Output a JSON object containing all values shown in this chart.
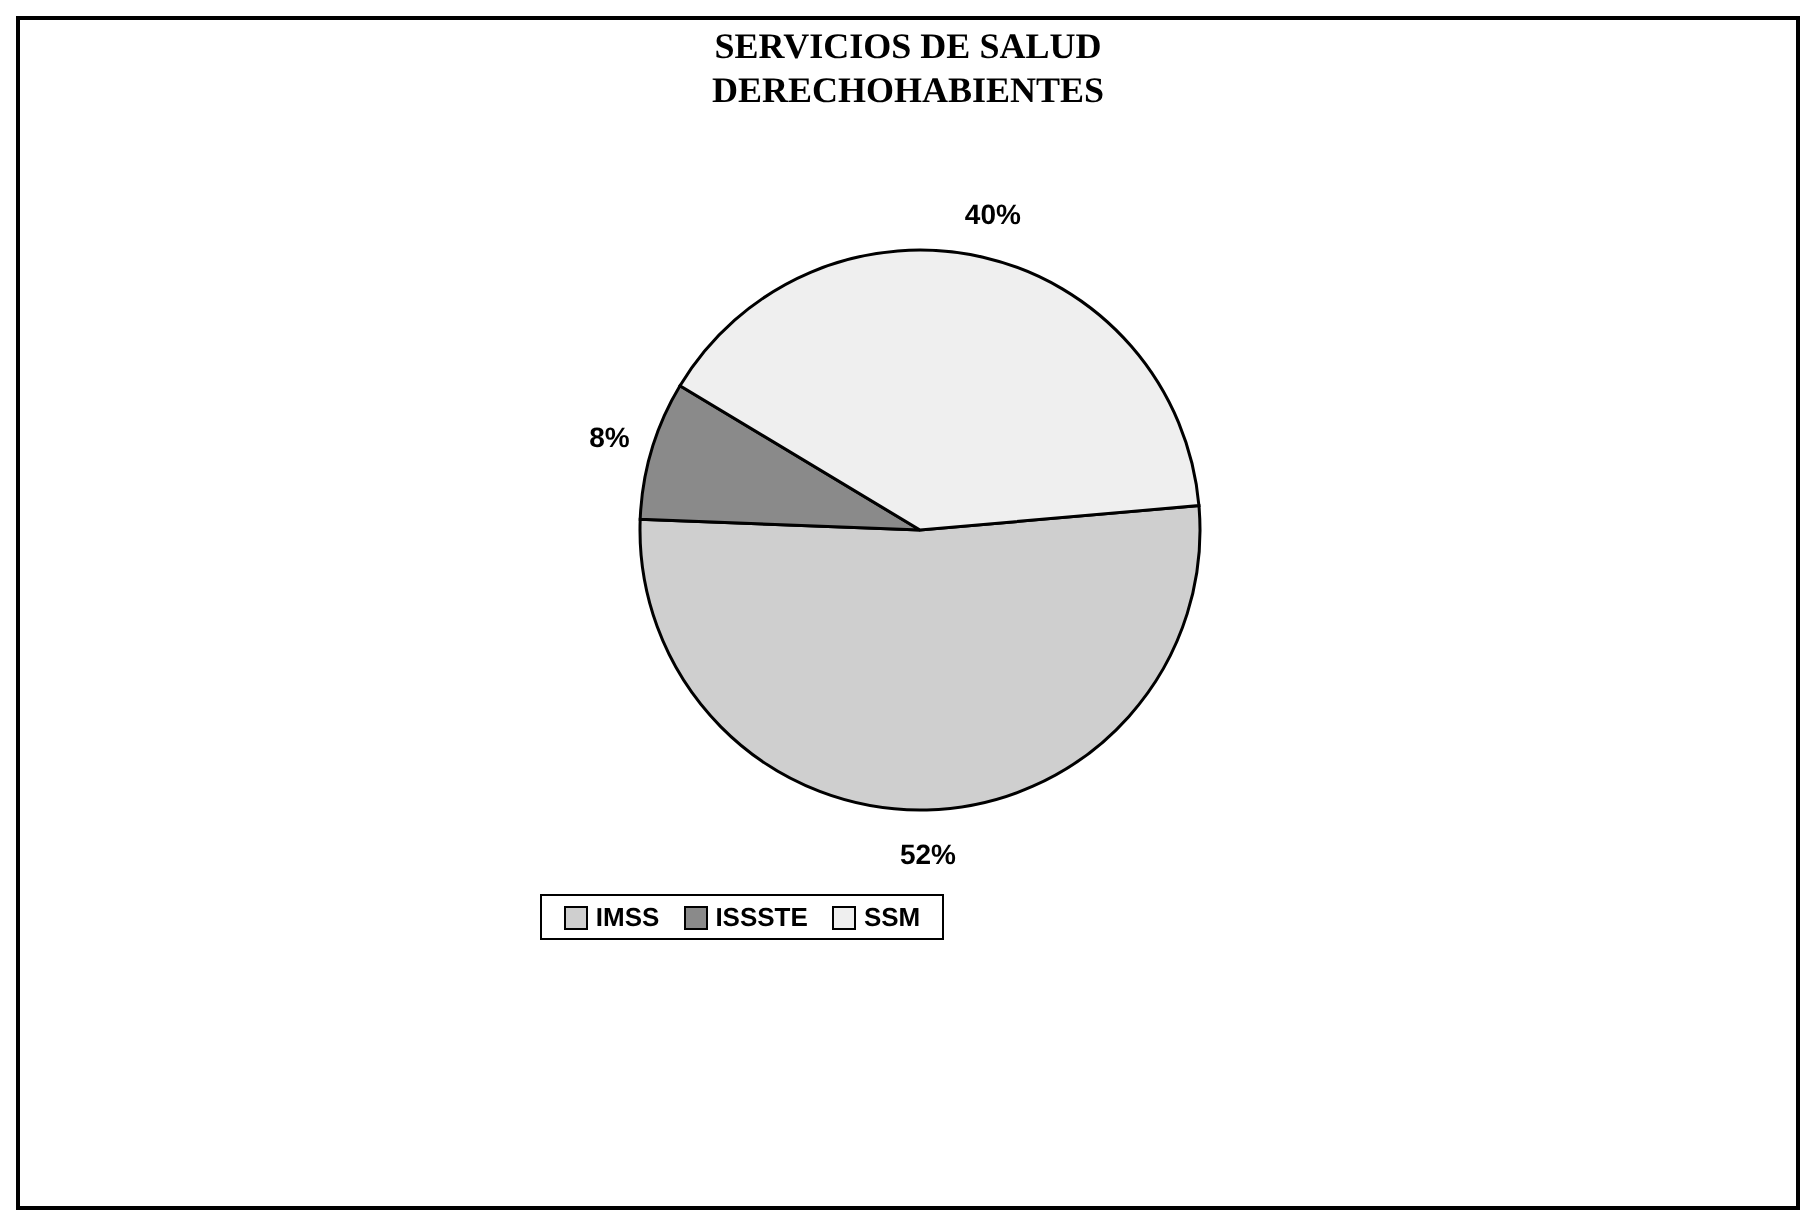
{
  "chart_data": {
    "type": "pie",
    "title": "SERVICIOS DE SALUD\nDERECHOHABIENTES",
    "categories": [
      "IMSS",
      "ISSSTE",
      "SSM"
    ],
    "values": [
      52,
      8,
      40
    ],
    "colors": [
      "#cfcfcf",
      "#8a8a8a",
      "#efefef"
    ],
    "value_labels": [
      "52%",
      "8%",
      "40%"
    ],
    "legend": "bottom"
  }
}
